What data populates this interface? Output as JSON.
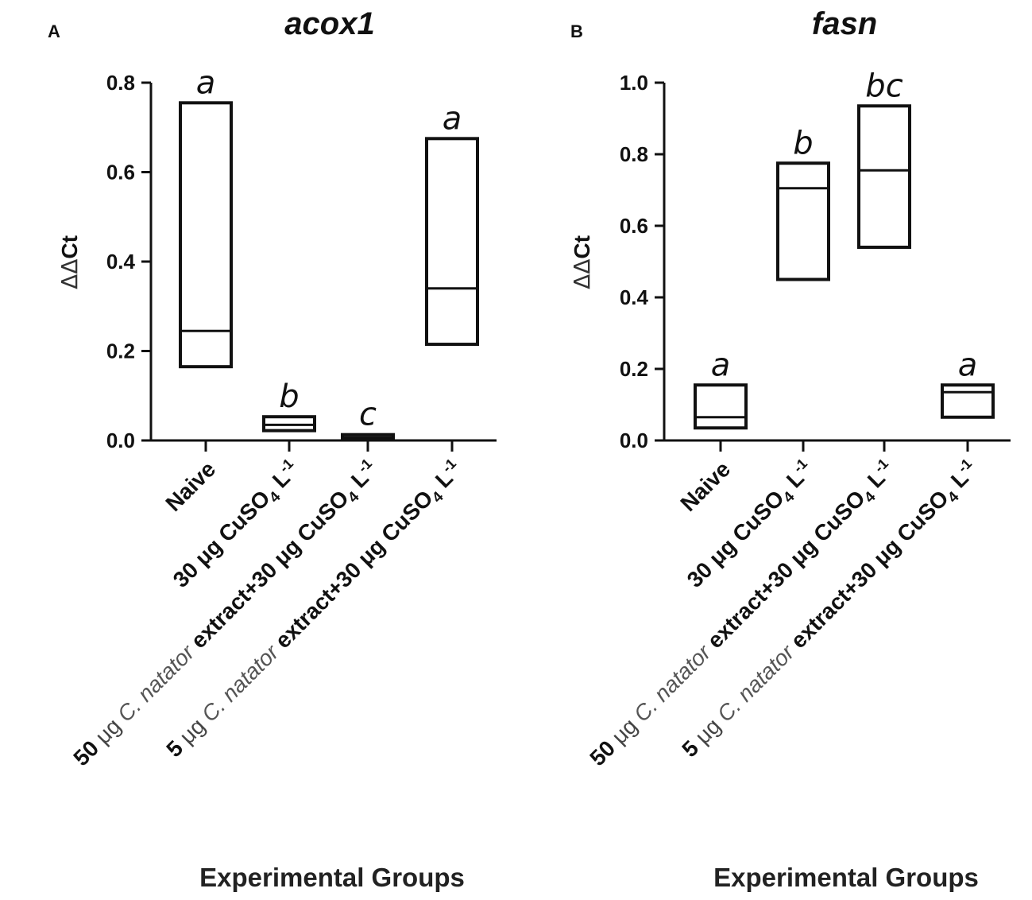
{
  "x_title": "Experimental Groups",
  "categories": [
    {
      "label": "Naive",
      "prefix": "",
      "species": "",
      "main": "Naive",
      "sub": "",
      "sup": ""
    },
    {
      "label": "30 μg CuSO4 L-1",
      "prefix": "30 ",
      "species": "",
      "main": "μg CuSO",
      "sub": "4",
      "sup": "-1"
    },
    {
      "label": "50 μg C. natator extract+30 μg CuSO4 L-1",
      "prefix": "50 ",
      "species": "C. natator",
      "main": " extract+30 μg CuSO",
      "sub": "4",
      "sup": "-1"
    },
    {
      "label": "5 μg C. natator extract+30 μg CuSO4 L-1",
      "prefix": "5 ",
      "species": "C. natator",
      "main": " extract+30 μg CuSO",
      "sub": "4",
      "sup": "-1"
    }
  ],
  "chart_data": [
    {
      "type": "box",
      "panel": "A",
      "title": "acox1",
      "ylabel_delta": "ΔΔ",
      "ylabel_ct": "Ct",
      "xlabel": "Experimental Groups",
      "ylim": [
        0,
        0.8
      ],
      "ticks": [
        "0.0",
        "0.2",
        "0.4",
        "0.6",
        "0.8"
      ],
      "tick_values": [
        0,
        0.2,
        0.4,
        0.6,
        0.8
      ],
      "series": [
        {
          "name": "Naive",
          "min": 0.165,
          "median": 0.245,
          "max": 0.755,
          "letter": "a"
        },
        {
          "name": "30 μg CuSO4 L-1",
          "min": 0.022,
          "median": 0.035,
          "max": 0.053,
          "letter": "b"
        },
        {
          "name": "50 μg C. natator extract+30 μg CuSO4 L-1",
          "min": 0.002,
          "median": 0.007,
          "max": 0.013,
          "letter": "c"
        },
        {
          "name": "5 μg C. natator extract+30 μg CuSO4 L-1",
          "min": 0.215,
          "median": 0.34,
          "max": 0.675,
          "letter": "a"
        }
      ]
    },
    {
      "type": "box",
      "panel": "B",
      "title": "fasn",
      "ylabel_delta": "ΔΔ",
      "ylabel_ct": "Ct",
      "xlabel": "Experimental Groups",
      "ylim": [
        0,
        1.0
      ],
      "ticks": [
        "0.0",
        "0.2",
        "0.4",
        "0.6",
        "0.8",
        "1.0"
      ],
      "tick_values": [
        0,
        0.2,
        0.4,
        0.6,
        0.8,
        1.0
      ],
      "series": [
        {
          "name": "Naive",
          "min": 0.035,
          "median": 0.065,
          "max": 0.155,
          "letter": "a"
        },
        {
          "name": "30 μg CuSO4 L-1",
          "min": 0.45,
          "median": 0.705,
          "max": 0.775,
          "letter": "b"
        },
        {
          "name": "50 μg C. natator extract+30 μg CuSO4 L-1",
          "min": 0.54,
          "median": 0.755,
          "max": 0.935,
          "letter": "bc"
        },
        {
          "name": "5 μg C. natator extract+30 μg CuSO4 L-1",
          "min": 0.065,
          "median": 0.135,
          "max": 0.155,
          "letter": "a"
        }
      ]
    }
  ]
}
